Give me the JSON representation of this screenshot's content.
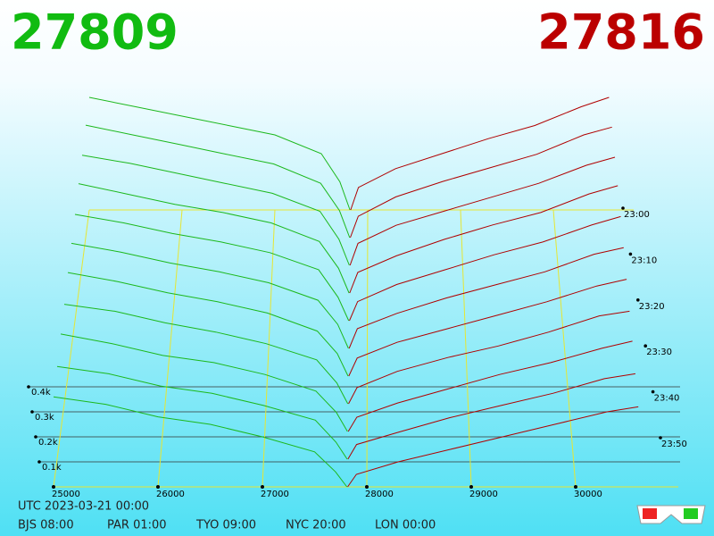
{
  "header": {
    "bid_price": 27809,
    "ask_price": 27816
  },
  "chart_data": {
    "type": "depth3d",
    "bid_color": "#1cb81c",
    "ask_color": "#b00000",
    "guide_color": "#e6e633",
    "x_ticks": [
      25000,
      26000,
      27000,
      28000,
      29000,
      30000
    ],
    "depth_ticks": [
      {
        "value": 0.1,
        "label": "0.1k"
      },
      {
        "value": 0.2,
        "label": "0.2k"
      },
      {
        "value": 0.3,
        "label": "0.3k"
      },
      {
        "value": 0.4,
        "label": "0.4k"
      }
    ],
    "time_ticks": [
      "23:00",
      "23:10",
      "23:20",
      "23:30",
      "23:40",
      "23:50"
    ],
    "bid_prices": [
      25000,
      25500,
      26000,
      26500,
      27000,
      27500,
      27700,
      27809
    ],
    "ask_prices": [
      27816,
      27900,
      28300,
      28800,
      29300,
      29800,
      30300,
      30600
    ],
    "snapshots": [
      {
        "bids": [
          0.6,
          0.55,
          0.5,
          0.45,
          0.4,
          0.3,
          0.15,
          0
        ],
        "asks": [
          0,
          0.12,
          0.22,
          0.3,
          0.38,
          0.45,
          0.55,
          0.6
        ]
      },
      {
        "bids": [
          0.58,
          0.53,
          0.48,
          0.43,
          0.38,
          0.28,
          0.14,
          0
        ],
        "asks": [
          0,
          0.11,
          0.21,
          0.29,
          0.36,
          0.43,
          0.53,
          0.57
        ]
      },
      {
        "bids": [
          0.55,
          0.51,
          0.46,
          0.41,
          0.36,
          0.27,
          0.13,
          0
        ],
        "asks": [
          0,
          0.11,
          0.2,
          0.27,
          0.34,
          0.41,
          0.5,
          0.54
        ]
      },
      {
        "bids": [
          0.53,
          0.48,
          0.43,
          0.39,
          0.34,
          0.25,
          0.12,
          0
        ],
        "asks": [
          0,
          0.1,
          0.18,
          0.26,
          0.33,
          0.39,
          0.48,
          0.52
        ]
      },
      {
        "bids": [
          0.5,
          0.46,
          0.41,
          0.37,
          0.32,
          0.24,
          0.11,
          0
        ],
        "asks": [
          0,
          0.09,
          0.17,
          0.24,
          0.31,
          0.37,
          0.45,
          0.49
        ]
      },
      {
        "bids": [
          0.48,
          0.44,
          0.39,
          0.35,
          0.3,
          0.22,
          0.11,
          0
        ],
        "asks": [
          0,
          0.09,
          0.16,
          0.23,
          0.29,
          0.35,
          0.43,
          0.46
        ]
      },
      {
        "bids": [
          0.46,
          0.42,
          0.37,
          0.33,
          0.28,
          0.2,
          0.1,
          0
        ],
        "asks": [
          0,
          0.08,
          0.15,
          0.21,
          0.27,
          0.33,
          0.4,
          0.43
        ]
      },
      {
        "bids": [
          0.43,
          0.4,
          0.35,
          0.31,
          0.26,
          0.19,
          0.09,
          0
        ],
        "asks": [
          0,
          0.07,
          0.14,
          0.2,
          0.25,
          0.31,
          0.38,
          0.4
        ]
      },
      {
        "bids": [
          0.41,
          0.37,
          0.32,
          0.29,
          0.24,
          0.17,
          0.08,
          0
        ],
        "asks": [
          0,
          0.06,
          0.12,
          0.18,
          0.24,
          0.29,
          0.35,
          0.38
        ]
      },
      {
        "bids": [
          0.38,
          0.35,
          0.3,
          0.27,
          0.22,
          0.16,
          0.07,
          0
        ],
        "asks": [
          0,
          0.06,
          0.11,
          0.17,
          0.22,
          0.27,
          0.33,
          0.35
        ]
      },
      {
        "bids": [
          0.36,
          0.33,
          0.28,
          0.25,
          0.2,
          0.14,
          0.06,
          0
        ],
        "asks": [
          0,
          0.05,
          0.1,
          0.15,
          0.2,
          0.25,
          0.3,
          0.32
        ]
      }
    ]
  },
  "footer": {
    "utc": "UTC 2023-03-21 00:00",
    "cities": [
      "BJS 08:00",
      "PAR 01:00",
      "TYO 09:00",
      "NYC 20:00",
      "LON 00:00"
    ]
  }
}
